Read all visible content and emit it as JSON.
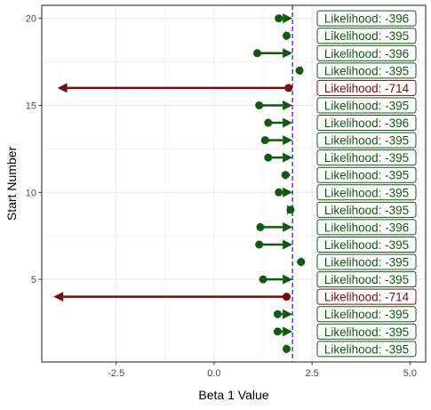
{
  "chart_data": {
    "type": "scatter",
    "title": "",
    "xlabel": "Beta 1 Value",
    "ylabel": "Start Number",
    "xlim": [
      -4.4,
      5.4
    ],
    "ylim": [
      0.25,
      20.75
    ],
    "x_ticks": [
      -2.5,
      0.0,
      2.5,
      5.0
    ],
    "x_tick_labels": [
      "-2.5",
      "0.0",
      "2.5",
      "5.0"
    ],
    "y_ticks": [
      5,
      10,
      15,
      20
    ],
    "y_tick_labels": [
      "5",
      "10",
      "15",
      "20"
    ],
    "grid": true,
    "reference_line": {
      "x": 2.0,
      "style": "dashed",
      "color": "#2b2bd6"
    },
    "colors": {
      "good": "#0f5a0f",
      "bad": "#7a0a0a",
      "panel_border": "#333333",
      "grid": "#ebebeb"
    },
    "starts": [
      {
        "start": 1,
        "x_start": 1.85,
        "x_end": 1.95,
        "likelihood": "Likelihood: -395",
        "status": "good"
      },
      {
        "start": 2,
        "x_start": 1.62,
        "x_end": 2.0,
        "likelihood": "Likelihood: -395",
        "status": "good"
      },
      {
        "start": 3,
        "x_start": 1.62,
        "x_end": 2.0,
        "likelihood": "Likelihood: -395",
        "status": "good"
      },
      {
        "start": 4,
        "x_start": 1.85,
        "x_end": -4.1,
        "likelihood": "Likelihood: -714",
        "status": "bad"
      },
      {
        "start": 5,
        "x_start": 1.25,
        "x_end": 2.0,
        "likelihood": "Likelihood: -395",
        "status": "good"
      },
      {
        "start": 6,
        "x_start": 2.22,
        "x_end": 2.1,
        "likelihood": "Likelihood: -395",
        "status": "good"
      },
      {
        "start": 7,
        "x_start": 1.15,
        "x_end": 2.0,
        "likelihood": "Likelihood: -395",
        "status": "good"
      },
      {
        "start": 8,
        "x_start": 1.18,
        "x_end": 2.0,
        "likelihood": "Likelihood: -396",
        "status": "good"
      },
      {
        "start": 9,
        "x_start": 1.95,
        "x_end": 2.0,
        "likelihood": "Likelihood: -395",
        "status": "good"
      },
      {
        "start": 10,
        "x_start": 1.65,
        "x_end": 2.0,
        "likelihood": "Likelihood: -395",
        "status": "good"
      },
      {
        "start": 11,
        "x_start": 1.82,
        "x_end": 1.95,
        "likelihood": "Likelihood: -395",
        "status": "good"
      },
      {
        "start": 12,
        "x_start": 1.38,
        "x_end": 2.0,
        "likelihood": "Likelihood: -395",
        "status": "good"
      },
      {
        "start": 13,
        "x_start": 1.3,
        "x_end": 2.0,
        "likelihood": "Likelihood: -395",
        "status": "good"
      },
      {
        "start": 14,
        "x_start": 1.38,
        "x_end": 2.0,
        "likelihood": "Likelihood: -396",
        "status": "good"
      },
      {
        "start": 15,
        "x_start": 1.15,
        "x_end": 2.0,
        "likelihood": "Likelihood: -395",
        "status": "good"
      },
      {
        "start": 16,
        "x_start": 1.9,
        "x_end": -4.0,
        "likelihood": "Likelihood: -714",
        "status": "bad"
      },
      {
        "start": 17,
        "x_start": 2.18,
        "x_end": 2.1,
        "likelihood": "Likelihood: -395",
        "status": "good"
      },
      {
        "start": 18,
        "x_start": 1.1,
        "x_end": 2.0,
        "likelihood": "Likelihood: -396",
        "status": "good"
      },
      {
        "start": 19,
        "x_start": 1.85,
        "x_end": 1.95,
        "likelihood": "Likelihood: -395",
        "status": "good"
      },
      {
        "start": 20,
        "x_start": 1.65,
        "x_end": 2.0,
        "likelihood": "Likelihood: -396",
        "status": "good"
      }
    ]
  }
}
